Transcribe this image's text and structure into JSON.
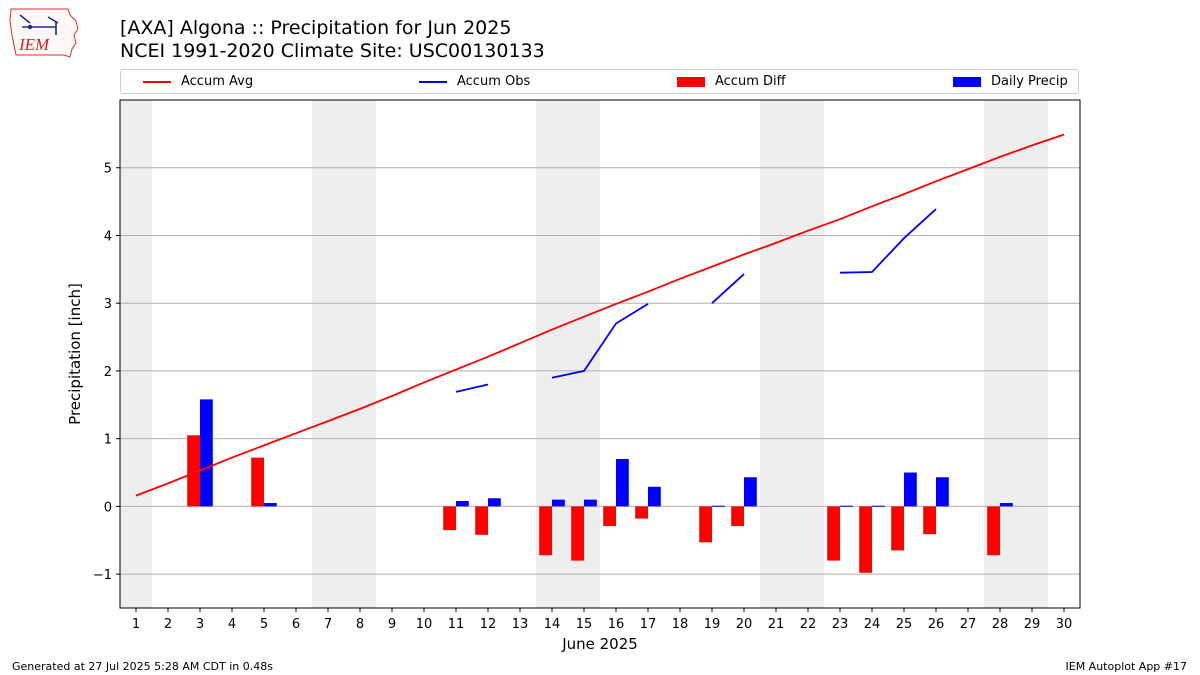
{
  "logo": {
    "text": "IEM",
    "icon": "iowa-state-outline-icon"
  },
  "title_line1": "[AXA] Algona :: Precipitation for Jun 2025",
  "title_line2": "NCEI 1991-2020 Climate Site: USC00130133",
  "legend": [
    {
      "label": "Accum Avg",
      "kind": "line",
      "color": "#ff0000"
    },
    {
      "label": "Accum Obs",
      "kind": "line",
      "color": "#0000ff"
    },
    {
      "label": "Accum Diff",
      "kind": "box",
      "color": "#ff0000"
    },
    {
      "label": "Daily Precip",
      "kind": "box",
      "color": "#0000ff"
    }
  ],
  "footer_left": "Generated at 27 Jul 2025 5:28 AM CDT in 0.48s",
  "footer_right": "IEM Autoplot App #17",
  "chart_data": {
    "type": "bar",
    "xlabel": "June 2025",
    "ylabel": "Precipitation [inch]",
    "xlim": [
      0.5,
      30.5
    ],
    "ylim": [
      -1.5,
      6.0
    ],
    "x_ticks": [
      1,
      2,
      3,
      4,
      5,
      6,
      7,
      8,
      9,
      10,
      11,
      12,
      13,
      14,
      15,
      16,
      17,
      18,
      19,
      20,
      21,
      22,
      23,
      24,
      25,
      26,
      27,
      28,
      29,
      30
    ],
    "y_ticks": [
      -1,
      0,
      1,
      2,
      3,
      4,
      5
    ],
    "y_tick_labels": [
      "−1",
      "0",
      "1",
      "2",
      "3",
      "4",
      "5"
    ],
    "grid": "horizontal",
    "legend_position": "top",
    "weekend_shading": [
      [
        1,
        1
      ],
      [
        7,
        8
      ],
      [
        14,
        15
      ],
      [
        21,
        22
      ],
      [
        28,
        29
      ]
    ],
    "shade_color": "#eeeeee",
    "days": [
      1,
      2,
      3,
      4,
      5,
      6,
      7,
      8,
      9,
      10,
      11,
      12,
      13,
      14,
      15,
      16,
      17,
      18,
      19,
      20,
      21,
      22,
      23,
      24,
      25,
      26,
      27,
      28,
      29,
      30
    ],
    "series": [
      {
        "name": "Accum Avg",
        "type": "line",
        "color": "#ff0000",
        "values": [
          0.16,
          0.34,
          0.53,
          0.72,
          0.9,
          1.08,
          1.26,
          1.44,
          1.63,
          1.83,
          2.02,
          2.21,
          2.41,
          2.61,
          2.8,
          2.99,
          3.17,
          3.36,
          3.54,
          3.72,
          3.89,
          4.07,
          4.24,
          4.43,
          4.61,
          4.8,
          4.98,
          5.16,
          5.33,
          5.49
        ]
      },
      {
        "name": "Accum Obs",
        "type": "line",
        "color": "#0000ff",
        "values": [
          null,
          null,
          null,
          null,
          null,
          null,
          null,
          null,
          null,
          null,
          1.69,
          1.8,
          null,
          1.9,
          2.0,
          2.7,
          2.99,
          null,
          3.0,
          3.43,
          null,
          null,
          3.45,
          3.46,
          3.96,
          4.39,
          null,
          null,
          null,
          null
        ]
      },
      {
        "name": "Accum Diff",
        "type": "bar",
        "color": "#ff0000",
        "values": [
          null,
          null,
          1.05,
          null,
          0.72,
          null,
          null,
          null,
          null,
          null,
          -0.35,
          -0.42,
          null,
          -0.72,
          -0.8,
          -0.29,
          -0.18,
          null,
          -0.53,
          -0.29,
          null,
          null,
          -0.8,
          -0.98,
          -0.65,
          -0.41,
          null,
          -0.72,
          null,
          null
        ]
      },
      {
        "name": "Daily Precip",
        "type": "bar",
        "color": "#0000ff",
        "values": [
          null,
          null,
          1.58,
          null,
          0.05,
          null,
          null,
          null,
          null,
          null,
          0.08,
          0.12,
          null,
          0.1,
          0.1,
          0.7,
          0.29,
          null,
          0.01,
          0.43,
          null,
          null,
          0.01,
          0.01,
          0.5,
          0.43,
          null,
          0.05,
          null,
          null
        ]
      }
    ]
  }
}
